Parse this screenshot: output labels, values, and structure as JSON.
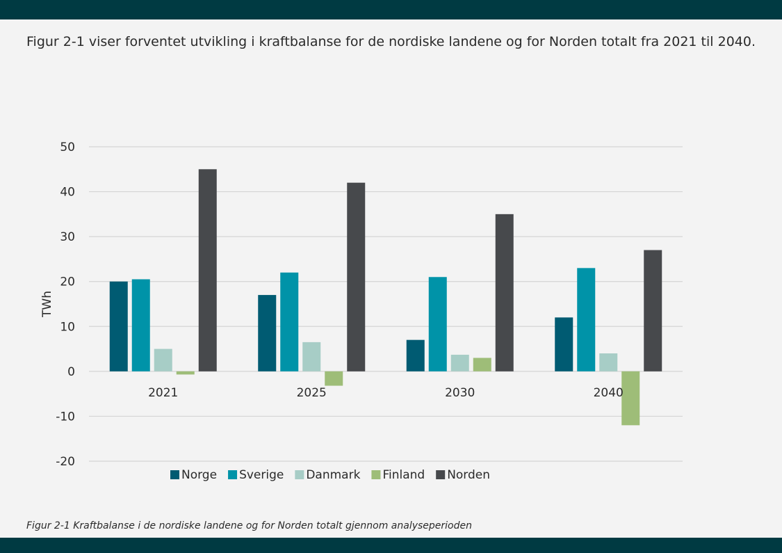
{
  "intro_text": "Figur 2-1 viser forventet utvikling i kraftbalanse for de nordiske landene og for Norden totalt fra 2021 til 2040.",
  "caption": "Figur 2-1 Kraftbalanse i de nordiske landene og for Norden totalt gjennom analyseperioden",
  "colors": {
    "band": "#003a42",
    "background": "#f3f3f3",
    "grid": "#d4d4d4",
    "text": "#2a2a2a"
  },
  "chart_data": {
    "type": "bar",
    "title": "",
    "xlabel": "",
    "ylabel": "TWh",
    "categories": [
      "2021",
      "2025",
      "2030",
      "2040"
    ],
    "ylim": [
      -20,
      50
    ],
    "yticks": [
      50,
      40,
      30,
      20,
      10,
      0,
      -10,
      -20
    ],
    "grid": true,
    "legend_position": "bottom",
    "series": [
      {
        "name": "Norge",
        "color": "#005b72",
        "values": [
          20,
          17,
          7,
          12
        ]
      },
      {
        "name": "Sverige",
        "color": "#0093a8",
        "values": [
          20.5,
          22,
          21,
          23
        ]
      },
      {
        "name": "Danmark",
        "color": "#a7cdc6",
        "values": [
          5,
          6.5,
          3.7,
          4
        ]
      },
      {
        "name": "Finland",
        "color": "#9ebd78",
        "values": [
          -0.7,
          -3.2,
          3,
          -12
        ]
      },
      {
        "name": "Norden",
        "color": "#47494c",
        "values": [
          45,
          42,
          35,
          27
        ]
      }
    ]
  }
}
